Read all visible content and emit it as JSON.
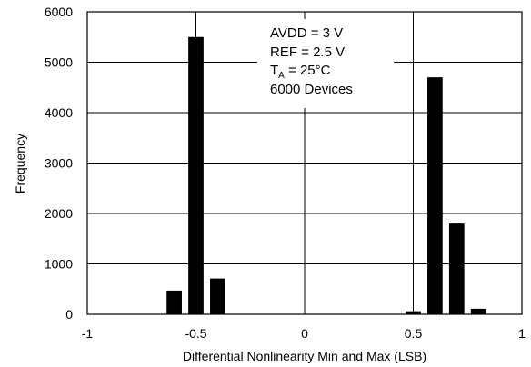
{
  "chart_data": {
    "type": "bar",
    "title": "",
    "xlabel": "Differential Nonlinearity Min and Max (LSB)",
    "ylabel": "Frequency",
    "xlim": [
      -1,
      1
    ],
    "ylim": [
      0,
      6000
    ],
    "grid": true,
    "x_ticks": [
      -1,
      -0.5,
      0,
      0.5,
      1
    ],
    "x_tick_labels": [
      "-1",
      "-0.5",
      "0",
      "0.5",
      "1"
    ],
    "y_ticks": [
      0,
      1000,
      2000,
      3000,
      4000,
      5000,
      6000
    ],
    "y_tick_labels": [
      "0",
      "1000",
      "2000",
      "3000",
      "4000",
      "5000",
      "6000"
    ],
    "bar_width": 0.07,
    "bars": [
      {
        "x": -0.6,
        "value": 470
      },
      {
        "x": -0.5,
        "value": 5500
      },
      {
        "x": -0.4,
        "value": 710
      },
      {
        "x": 0.5,
        "value": 60
      },
      {
        "x": 0.6,
        "value": 4700
      },
      {
        "x": 0.7,
        "value": 1800
      },
      {
        "x": 0.8,
        "value": 110
      }
    ],
    "annotation": {
      "lines": [
        {
          "text": "AVDD = 3 V"
        },
        {
          "text": "REF = 2.5 V"
        },
        {
          "text": "T",
          "sub": "A",
          "rest": " = 25°C"
        },
        {
          "text": "6000 Devices"
        }
      ]
    },
    "colors": {
      "bars": "#000000",
      "grid": "#000000",
      "background": "#ffffff"
    }
  }
}
